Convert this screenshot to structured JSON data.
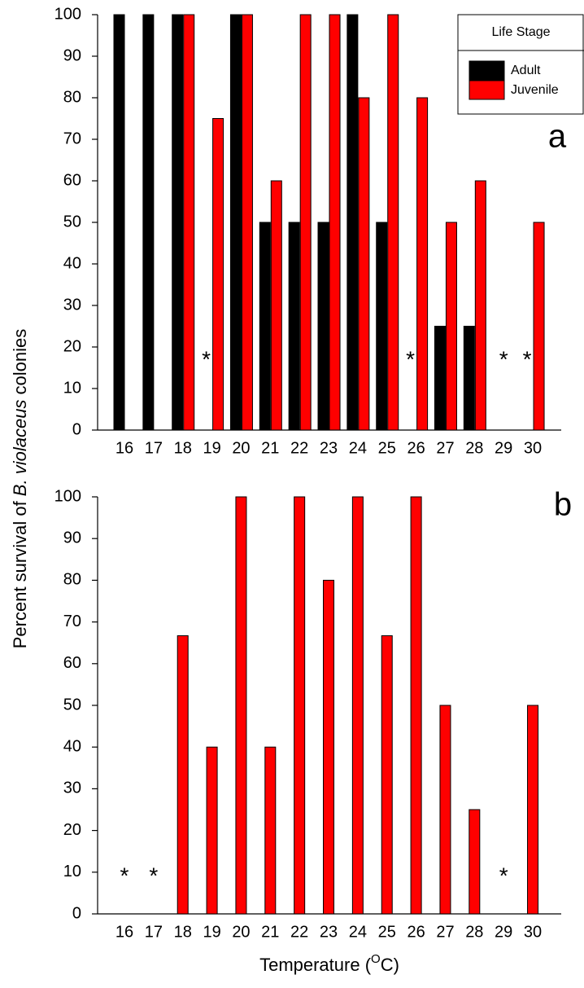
{
  "chart_data": [
    {
      "type": "bar",
      "panel_label": "a",
      "ylabel": [
        "Percent survival of ",
        "B. violaceus",
        " colonies"
      ],
      "categories": [
        "16",
        "17",
        "18",
        "19",
        "20",
        "21",
        "22",
        "23",
        "24",
        "25",
        "26",
        "27",
        "28",
        "29",
        "30"
      ],
      "series": [
        {
          "name": "Adult",
          "color": "#000000",
          "values": [
            100,
            100,
            100,
            null,
            100,
            50,
            50,
            50,
            100,
            50,
            null,
            25,
            25,
            null,
            null
          ]
        },
        {
          "name": "Juvenile",
          "color": "#ff0000",
          "values": [
            null,
            null,
            100,
            75,
            100,
            60,
            100,
            100,
            80,
            100,
            80,
            50,
            60,
            null,
            50
          ]
        }
      ],
      "annotations": [
        {
          "text": "*",
          "category": "19",
          "series": "Adult"
        },
        {
          "text": "*",
          "category": "26",
          "series": "Adult"
        },
        {
          "text": "*",
          "category": "29"
        },
        {
          "text": "*",
          "category": "30",
          "series": "Adult"
        }
      ],
      "ylim": [
        0,
        100
      ],
      "yticks": [
        0,
        10,
        20,
        30,
        40,
        50,
        60,
        70,
        80,
        90,
        100
      ],
      "legend": {
        "title": "Life Stage",
        "position": "upper right"
      }
    },
    {
      "type": "bar",
      "panel_label": "b",
      "xlabel": [
        "Temperature (",
        "O",
        "C)"
      ],
      "categories": [
        "16",
        "17",
        "18",
        "19",
        "20",
        "21",
        "22",
        "23",
        "24",
        "25",
        "26",
        "27",
        "28",
        "29",
        "30"
      ],
      "series": [
        {
          "color": "#ff0000",
          "values": [
            null,
            null,
            66.7,
            40,
            100,
            40,
            100,
            80,
            100,
            66.7,
            100,
            50,
            25,
            null,
            50
          ]
        }
      ],
      "annotations": [
        {
          "text": "*",
          "category": "16"
        },
        {
          "text": "*",
          "category": "17"
        },
        {
          "text": "*",
          "category": "29"
        }
      ],
      "ylim": [
        0,
        100
      ],
      "yticks": [
        0,
        10,
        20,
        30,
        40,
        50,
        60,
        70,
        80,
        90,
        100
      ]
    }
  ]
}
